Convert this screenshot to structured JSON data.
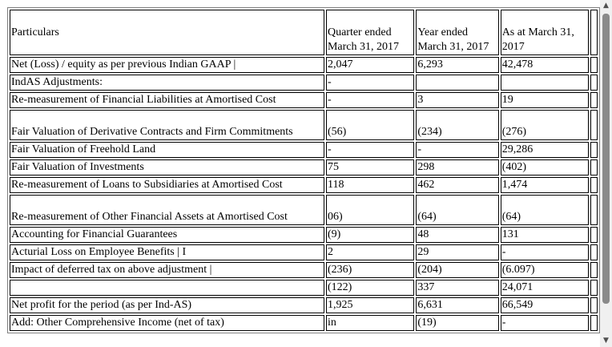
{
  "table": {
    "header": {
      "particulars": "Particulars",
      "quarter": "Quarter ended March 31, 2017",
      "year": "Year ended March 31, 2017",
      "asat": "As at March 31, 2017"
    },
    "rows": [
      {
        "particulars": "Net (Loss) / equity as per previous Indian GAAP |",
        "quarter": "2,047",
        "year": "6,293",
        "asat": "42,478"
      },
      {
        "particulars": "IndAS Adjustments:",
        "quarter": "-",
        "year": "",
        "asat": ""
      },
      {
        "particulars": "Re-measurement of Financial Liabilities at Amortised Cost",
        "quarter": "-",
        "year": "3",
        "asat": "19"
      },
      {
        "particulars": "Fair Valuation of Derivative Contracts and Firm Commitments",
        "quarter": "(56)",
        "year": "(234)",
        "asat": "(276)"
      },
      {
        "particulars": "Fair Valuation of Freehold Land",
        "quarter": "-",
        "year": "-",
        "asat": "29,286"
      },
      {
        "particulars": "Fair Valuation of Investments",
        "quarter": "75",
        "year": "298",
        "asat": "(402)"
      },
      {
        "particulars": "Re-measurement of Loans to Subsidiaries at Amortised Cost",
        "quarter": "118",
        "year": "462",
        "asat": "1,474"
      },
      {
        "particulars": "Re-measurement of Other Financial Assets at Amortised Cost",
        "quarter": "06)",
        "year": "(64)",
        "asat": "(64)"
      },
      {
        "particulars": "Accounting for Financial Guarantees",
        "quarter": "(9)",
        "year": "48",
        "asat": "131"
      },
      {
        "particulars": "Acturial Loss on Employee Benefits | I",
        "quarter": "2",
        "year": "29",
        "asat": "-"
      },
      {
        "particulars": "Impact of deferred tax on above adjustment |",
        "quarter": "(236)",
        "year": "(204)",
        "asat": "(6.097)"
      },
      {
        "particulars": "",
        "quarter": "(122)",
        "year": "337",
        "asat": "24,071"
      },
      {
        "particulars": "Net profit for the period (as per Ind-AS)",
        "quarter": "1,925",
        "year": "6,631",
        "asat": "66,549"
      },
      {
        "particulars": "Add: Other Comprehensive Income (net of tax)",
        "quarter": "in",
        "year": "(19)",
        "asat": "-"
      }
    ]
  }
}
